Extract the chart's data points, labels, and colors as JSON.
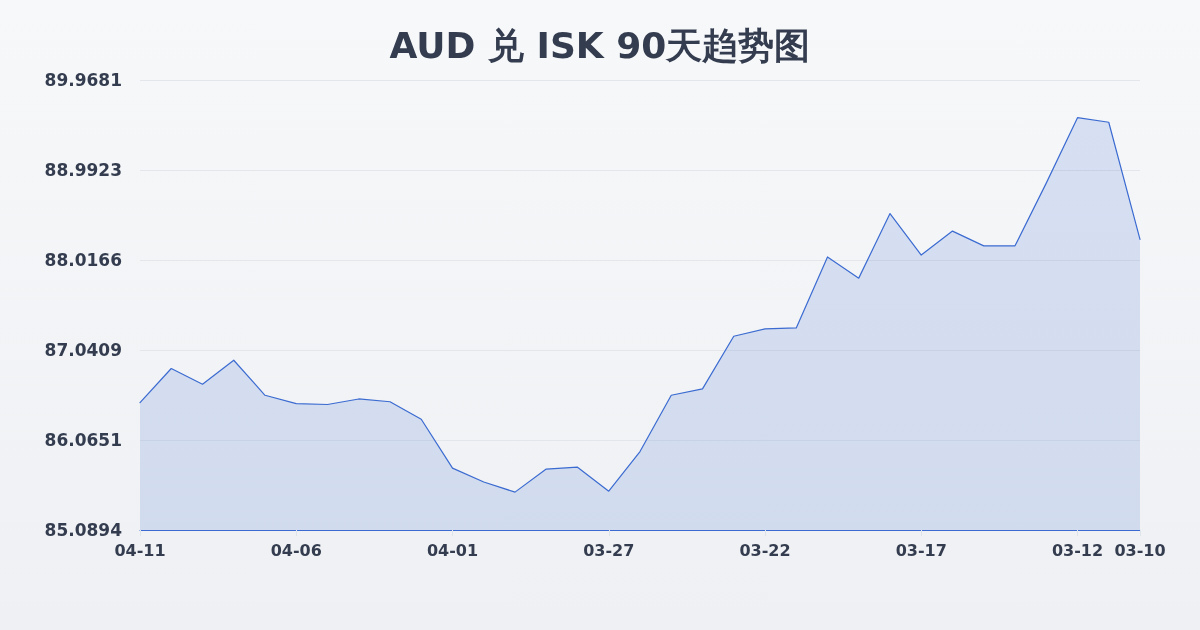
{
  "chart_data": {
    "type": "area",
    "title": "AUD 兑 ISK 90天趋势图",
    "categories": [
      "04-11",
      null,
      null,
      null,
      null,
      "04-06",
      null,
      null,
      null,
      null,
      "04-01",
      null,
      null,
      null,
      null,
      "03-27",
      null,
      null,
      null,
      null,
      "03-22",
      null,
      null,
      null,
      null,
      "03-17",
      null,
      null,
      null,
      null,
      "03-12",
      null,
      "03-10"
    ],
    "values": [
      86.47,
      86.84,
      86.67,
      86.93,
      86.55,
      86.46,
      86.45,
      86.51,
      86.48,
      86.29,
      85.76,
      85.61,
      85.5,
      85.75,
      85.77,
      85.51,
      85.94,
      86.55,
      86.62,
      87.19,
      87.27,
      87.28,
      88.05,
      87.82,
      88.52,
      88.07,
      88.33,
      88.17,
      88.17,
      88.85,
      89.56,
      89.51,
      88.24
    ],
    "color": "#3b6bd1",
    "ylim": [
      85.0894,
      89.9681
    ],
    "yticks": [
      85.0894,
      86.0651,
      87.0409,
      88.0166,
      88.9923,
      89.9681
    ],
    "grid": "y"
  }
}
